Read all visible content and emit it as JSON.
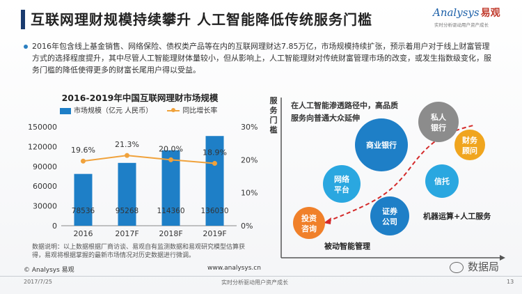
{
  "header": {
    "title": "互联网理财规模持续攀升    人工智能降低传统服务门槛"
  },
  "logo": {
    "brand": "Analysys",
    "brand_cn": "易观",
    "tagline": "实时分析驱动用户资产成长"
  },
  "intro": {
    "text": "2016年包含线上基金销售、网络保险、债权类产品等在内的互联网理财达7.85万亿，市场规模持续扩张，预示着用户对于线上财富管理方式的选择程度提升，其中尽管人工智能理财体量较小，但从影响上，人工智能理财对传统财富管理市场的改变，或发生指数级变化，服务门槛的降低使得更多的财富长尾用户得以受益。"
  },
  "chart_data": {
    "type": "bar+line",
    "title": "2016-2019年中国互联网理财市场规模",
    "categories": [
      "2016",
      "2017F",
      "2018F",
      "2019F"
    ],
    "series": [
      {
        "name": "市场规模（亿元 人民币）",
        "type": "bar",
        "axis": "left",
        "values": [
          78536,
          95268,
          114360,
          136030
        ],
        "labels": [
          "78536",
          "95268",
          "114360",
          "136030"
        ]
      },
      {
        "name": "同比增长率",
        "type": "line",
        "axis": "right",
        "values": [
          19.6,
          21.3,
          20.0,
          18.9
        ],
        "labels": [
          "19.6%",
          "21.3%",
          "20.0%",
          "18.9%"
        ]
      }
    ],
    "y_left": {
      "ticks": [
        "0",
        "30000",
        "60000",
        "90000",
        "120000",
        "150000"
      ],
      "min": 0,
      "max": 150000
    },
    "y_right": {
      "ticks": [
        "0%",
        "10%",
        "20%",
        "30%"
      ],
      "min": 0,
      "max": 30
    },
    "colors": {
      "bar": "#1e7fc7",
      "line": "#f0a23b"
    }
  },
  "note": {
    "text": "数据说明：以上数据根据厂商访谈、易观自有监测数据和易观研究模型估算获得，易观将根据掌握的最新市场情况对历史数据进行微调。"
  },
  "diagram": {
    "y_axis_label": "服务门槛",
    "top_text_line1": "在人工智能渗透路径中，高品质",
    "top_text_line2": "服务向普通大众延伸",
    "bottom_left_label": "被动智能管理",
    "bottom_right_label": "机器运算+人工服务",
    "bubbles": [
      {
        "label": "商业银行",
        "color": "#1e7fc7"
      },
      {
        "label": "私人银行",
        "color": "#8c8c8c"
      },
      {
        "label": "财务顾问",
        "color": "#f0a51e"
      },
      {
        "label": "网络平台",
        "color": "#2aa7e0"
      },
      {
        "label": "信托",
        "color": "#2aa7e0"
      },
      {
        "label": "证券公司",
        "color": "#1e7fc7"
      },
      {
        "label": "投资咨询",
        "color": "#f0802a"
      }
    ]
  },
  "footer": {
    "copyright": "© Analysys 易观",
    "website": "www.analysys.cn",
    "date": "2017/7/25",
    "slogan": "实时分析驱动用户资产成长",
    "page": "13",
    "wechat": "数据局"
  }
}
